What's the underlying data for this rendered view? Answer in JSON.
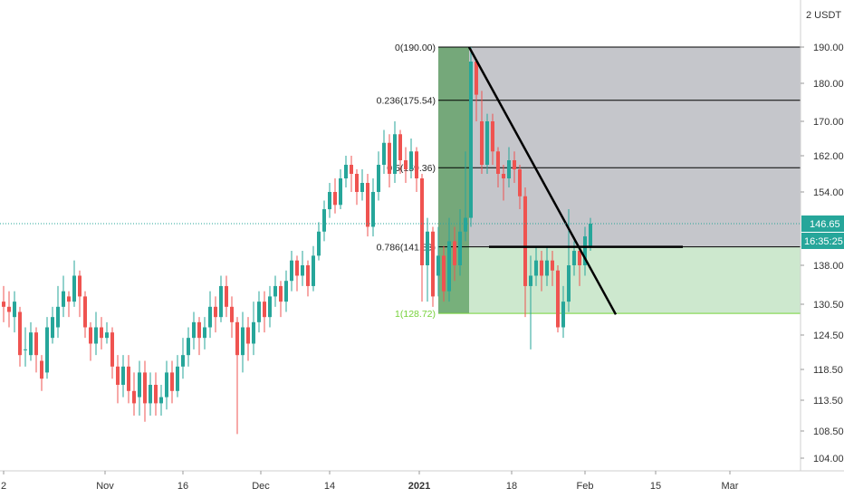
{
  "app": {
    "currency_label": "2 USDT"
  },
  "price_axis": {
    "ticks": [
      "190.00",
      "180.00",
      "170.00",
      "162.00",
      "154.00",
      "146.65",
      "138.00",
      "130.50",
      "124.50",
      "118.50",
      "113.50",
      "108.50",
      "104.00"
    ],
    "last_price_label": "146.65",
    "countdown_label": "16:35:25",
    "last_price_color": "#26a69a",
    "countdown_color": "#26a69a"
  },
  "time_axis": {
    "labels": [
      "2",
      "Nov",
      "16",
      "Dec",
      "14",
      "2021",
      "18",
      "Feb",
      "15",
      "Mar"
    ]
  },
  "fib": {
    "levels": [
      {
        "label": "0(190.00)",
        "price": 190.0
      },
      {
        "label": "0.236(175.54)",
        "price": 175.54
      },
      {
        "label": "0.5(159.36)",
        "price": 159.36
      },
      {
        "label": "0.786(141.83)",
        "price": 141.83
      },
      {
        "label": "1(128.72)",
        "price": 128.72
      }
    ],
    "colors": {
      "zone_gray": "#9598a1",
      "zone_green": "#c8e6c9",
      "zone_dark": "#5a9e5f",
      "line_black": "#000000",
      "line_green": "#76d23a"
    }
  },
  "chart_data": {
    "type": "candlestick",
    "symbol_quote": "USDT",
    "ylim": [
      100,
      200
    ],
    "last_price": 146.65,
    "up_color": "#26a69a",
    "down_color": "#ef5350",
    "note_levels": [
      190.0,
      175.54,
      159.36,
      141.83,
      128.72
    ]
  }
}
